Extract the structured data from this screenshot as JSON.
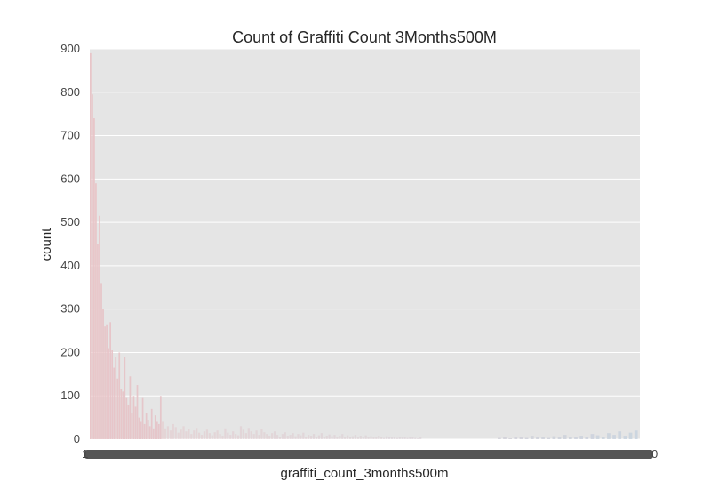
{
  "chart_data": {
    "type": "bar",
    "title": "Count of Graffiti Count 3Months500M",
    "xlabel": "graffiti_count_3months500m",
    "ylabel": "count",
    "ylim": [
      0,
      900
    ],
    "yticks": [
      0,
      100,
      200,
      300,
      400,
      500,
      600,
      700,
      800,
      900
    ],
    "x_tick_first": "1",
    "x_tick_last": "0",
    "grid": true,
    "legend": "none",
    "bar_values": [
      890,
      795,
      740,
      590,
      450,
      515,
      360,
      300,
      260,
      265,
      210,
      270,
      205,
      165,
      190,
      140,
      200,
      115,
      110,
      190,
      95,
      80,
      145,
      60,
      100,
      75,
      125,
      50,
      40,
      95,
      35,
      60,
      45,
      30,
      70,
      25,
      55,
      40,
      35,
      100
    ],
    "tail_values": [
      40,
      25,
      30,
      20,
      35,
      28,
      15,
      22,
      30,
      18,
      24,
      12,
      20,
      26,
      15,
      10,
      18,
      22,
      14,
      9,
      16,
      20,
      12,
      8,
      25,
      15,
      10,
      18,
      12,
      9,
      30,
      22,
      14,
      26,
      18,
      12,
      20,
      10,
      24,
      16,
      12,
      8,
      14,
      18,
      10,
      6,
      12,
      16,
      8,
      10,
      14,
      7,
      12,
      9,
      15,
      6,
      10,
      8,
      12,
      6,
      9,
      14,
      6,
      8,
      11,
      7,
      10,
      5,
      8,
      12,
      6,
      9,
      5,
      7,
      10,
      4,
      8,
      6,
      9,
      5,
      7,
      4,
      6,
      8,
      5,
      3,
      7,
      5,
      4,
      6,
      3,
      5,
      4,
      6,
      3,
      4,
      5,
      3,
      2,
      4
    ],
    "right_tail_values": [
      3,
      5,
      2,
      4,
      6,
      3,
      8,
      4,
      5,
      3,
      7,
      4,
      10,
      6,
      5,
      8,
      4,
      12,
      9,
      6,
      14,
      10,
      18,
      8,
      15,
      20
    ],
    "colors": {
      "background": "#e5e5e5",
      "grid": "#ffffff",
      "bars_start": "#e8c3c6",
      "bars_end": "#c5d2de",
      "tick_band": "#555555"
    }
  }
}
